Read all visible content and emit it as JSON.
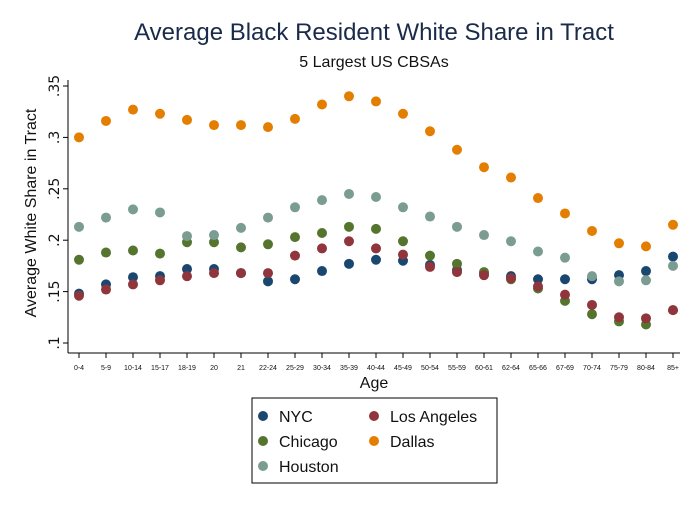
{
  "chart_data": {
    "type": "scatter",
    "title": "Average Black Resident White Share in Tract",
    "subtitle": "5 Largest US CBSAs",
    "xlabel": "Age",
    "ylabel": "Average White Share in Tract",
    "categories": [
      "0-4",
      "5-9",
      "10-14",
      "15-17",
      "18-19",
      "20",
      "21",
      "22-24",
      "25-29",
      "30-34",
      "35-39",
      "40-44",
      "45-49",
      "50-54",
      "55-59",
      "60-61",
      "62-64",
      "65-66",
      "67-69",
      "70-74",
      "75-79",
      "80-84",
      "85+"
    ],
    "ylim": [
      0.1,
      0.35
    ],
    "yticks": [
      0.1,
      0.15,
      0.2,
      0.25,
      0.3,
      0.35
    ],
    "ytick_labels": [
      ".1",
      ".15",
      ".2",
      ".25",
      ".3",
      ".35"
    ],
    "grid": false,
    "legend_position": "bottom",
    "series": [
      {
        "name": "NYC",
        "color": "#1a476f",
        "values": [
          0.148,
          0.157,
          0.164,
          0.165,
          0.172,
          0.172,
          0.168,
          0.16,
          0.162,
          0.17,
          0.177,
          0.181,
          0.18,
          0.176,
          0.171,
          0.168,
          0.165,
          0.162,
          0.162,
          0.162,
          0.166,
          0.17,
          0.184
        ]
      },
      {
        "name": "Chicago",
        "color": "#55752f",
        "values": [
          0.181,
          0.188,
          0.19,
          0.187,
          0.198,
          0.198,
          0.193,
          0.196,
          0.203,
          0.207,
          0.213,
          0.211,
          0.199,
          0.185,
          0.177,
          0.169,
          0.162,
          0.153,
          0.141,
          0.128,
          0.121,
          0.118,
          0.132
        ]
      },
      {
        "name": "Houston",
        "color": "#7a9c92",
        "values": [
          0.213,
          0.222,
          0.23,
          0.227,
          0.204,
          0.205,
          0.212,
          0.222,
          0.232,
          0.239,
          0.245,
          0.242,
          0.232,
          0.223,
          0.213,
          0.205,
          0.199,
          0.189,
          0.183,
          0.165,
          0.16,
          0.161,
          0.175
        ]
      },
      {
        "name": "Los Angeles",
        "color": "#90353b",
        "values": [
          0.146,
          0.152,
          0.157,
          0.161,
          0.165,
          0.168,
          0.168,
          0.168,
          0.185,
          0.192,
          0.199,
          0.192,
          0.186,
          0.174,
          0.169,
          0.166,
          0.163,
          0.155,
          0.147,
          0.137,
          0.125,
          0.124,
          0.132
        ]
      },
      {
        "name": "Dallas",
        "color": "#e37e00",
        "values": [
          0.3,
          0.316,
          0.327,
          0.323,
          0.317,
          0.312,
          0.312,
          0.31,
          0.318,
          0.332,
          0.34,
          0.335,
          0.323,
          0.306,
          0.288,
          0.271,
          0.261,
          0.241,
          0.226,
          0.209,
          0.197,
          0.194,
          0.215
        ]
      }
    ]
  }
}
